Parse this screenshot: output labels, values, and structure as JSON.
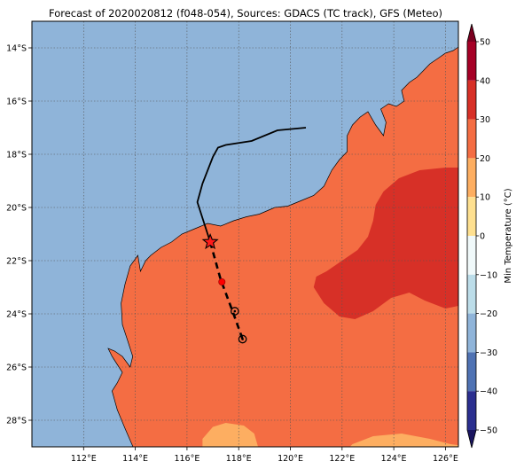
{
  "title": "Forecast of 2020020812 (f048-054), Sources: GDACS (TC track), GFS (Meteo)",
  "map": {
    "lon_range": [
      110.0,
      126.5
    ],
    "lat_range": [
      -29.0,
      -13.0
    ],
    "lon_ticks": [
      {
        "value": 112,
        "label": "112°E"
      },
      {
        "value": 114,
        "label": "114°E"
      },
      {
        "value": 116,
        "label": "116°E"
      },
      {
        "value": 118,
        "label": "118°E"
      },
      {
        "value": 120,
        "label": "120°E"
      },
      {
        "value": 122,
        "label": "122°E"
      },
      {
        "value": 124,
        "label": "124°E"
      },
      {
        "value": 126,
        "label": "126°E"
      }
    ],
    "lat_ticks": [
      {
        "value": -14,
        "label": "14°S"
      },
      {
        "value": -16,
        "label": "16°S"
      },
      {
        "value": -18,
        "label": "18°S"
      },
      {
        "value": -20,
        "label": "20°S"
      },
      {
        "value": -22,
        "label": "22°S"
      },
      {
        "value": -24,
        "label": "24°S"
      },
      {
        "value": -26,
        "label": "26°S"
      },
      {
        "value": -28,
        "label": "28°S"
      }
    ],
    "grid": true,
    "ocean_color": "#8fb4d9",
    "land_color": "#f46d43",
    "warm_color": "#d73027",
    "cool_color": "#fdae61"
  },
  "track": {
    "past": [
      [
        120.6,
        -17.0
      ],
      [
        119.5,
        -17.1
      ],
      [
        118.5,
        -17.5
      ],
      [
        117.5,
        -17.65
      ],
      [
        117.2,
        -17.75
      ],
      [
        117.0,
        -18.1
      ],
      [
        116.6,
        -19.1
      ],
      [
        116.4,
        -19.8
      ],
      [
        116.9,
        -21.3
      ]
    ],
    "forecast": [
      [
        116.9,
        -21.3
      ],
      [
        117.3,
        -22.7
      ],
      [
        117.8,
        -24.0
      ],
      [
        118.15,
        -24.95
      ]
    ],
    "current_position": [
      116.9,
      -21.3
    ],
    "forecast_red_point": [
      117.35,
      -22.8
    ],
    "open_circle_points": [
      [
        117.85,
        -23.9
      ],
      [
        118.15,
        -24.95
      ]
    ]
  },
  "colorbar": {
    "label": "Min Temperature (°C)",
    "min": -50,
    "max": 50,
    "ticks": [
      "50",
      "40",
      "30",
      "20",
      "10",
      "0",
      "−10",
      "−20",
      "−30",
      "−40",
      "−50"
    ],
    "bands": [
      {
        "from": 40,
        "to": 50,
        "color": "#a50026"
      },
      {
        "from": 30,
        "to": 40,
        "color": "#d73027"
      },
      {
        "from": 20,
        "to": 30,
        "color": "#f46d43"
      },
      {
        "from": 10,
        "to": 20,
        "color": "#fdae61"
      },
      {
        "from": 0,
        "to": 10,
        "color": "#fee090"
      },
      {
        "from": -10,
        "to": 0,
        "color": "#f0f9fa"
      },
      {
        "from": -20,
        "to": -10,
        "color": "#bcdde9"
      },
      {
        "from": -30,
        "to": -20,
        "color": "#8fb4d9"
      },
      {
        "from": -40,
        "to": -30,
        "color": "#4f72b3"
      },
      {
        "from": -50,
        "to": -40,
        "color": "#2b2f8f"
      }
    ],
    "over_color": "#7b0020",
    "under_color": "#1a1560"
  }
}
